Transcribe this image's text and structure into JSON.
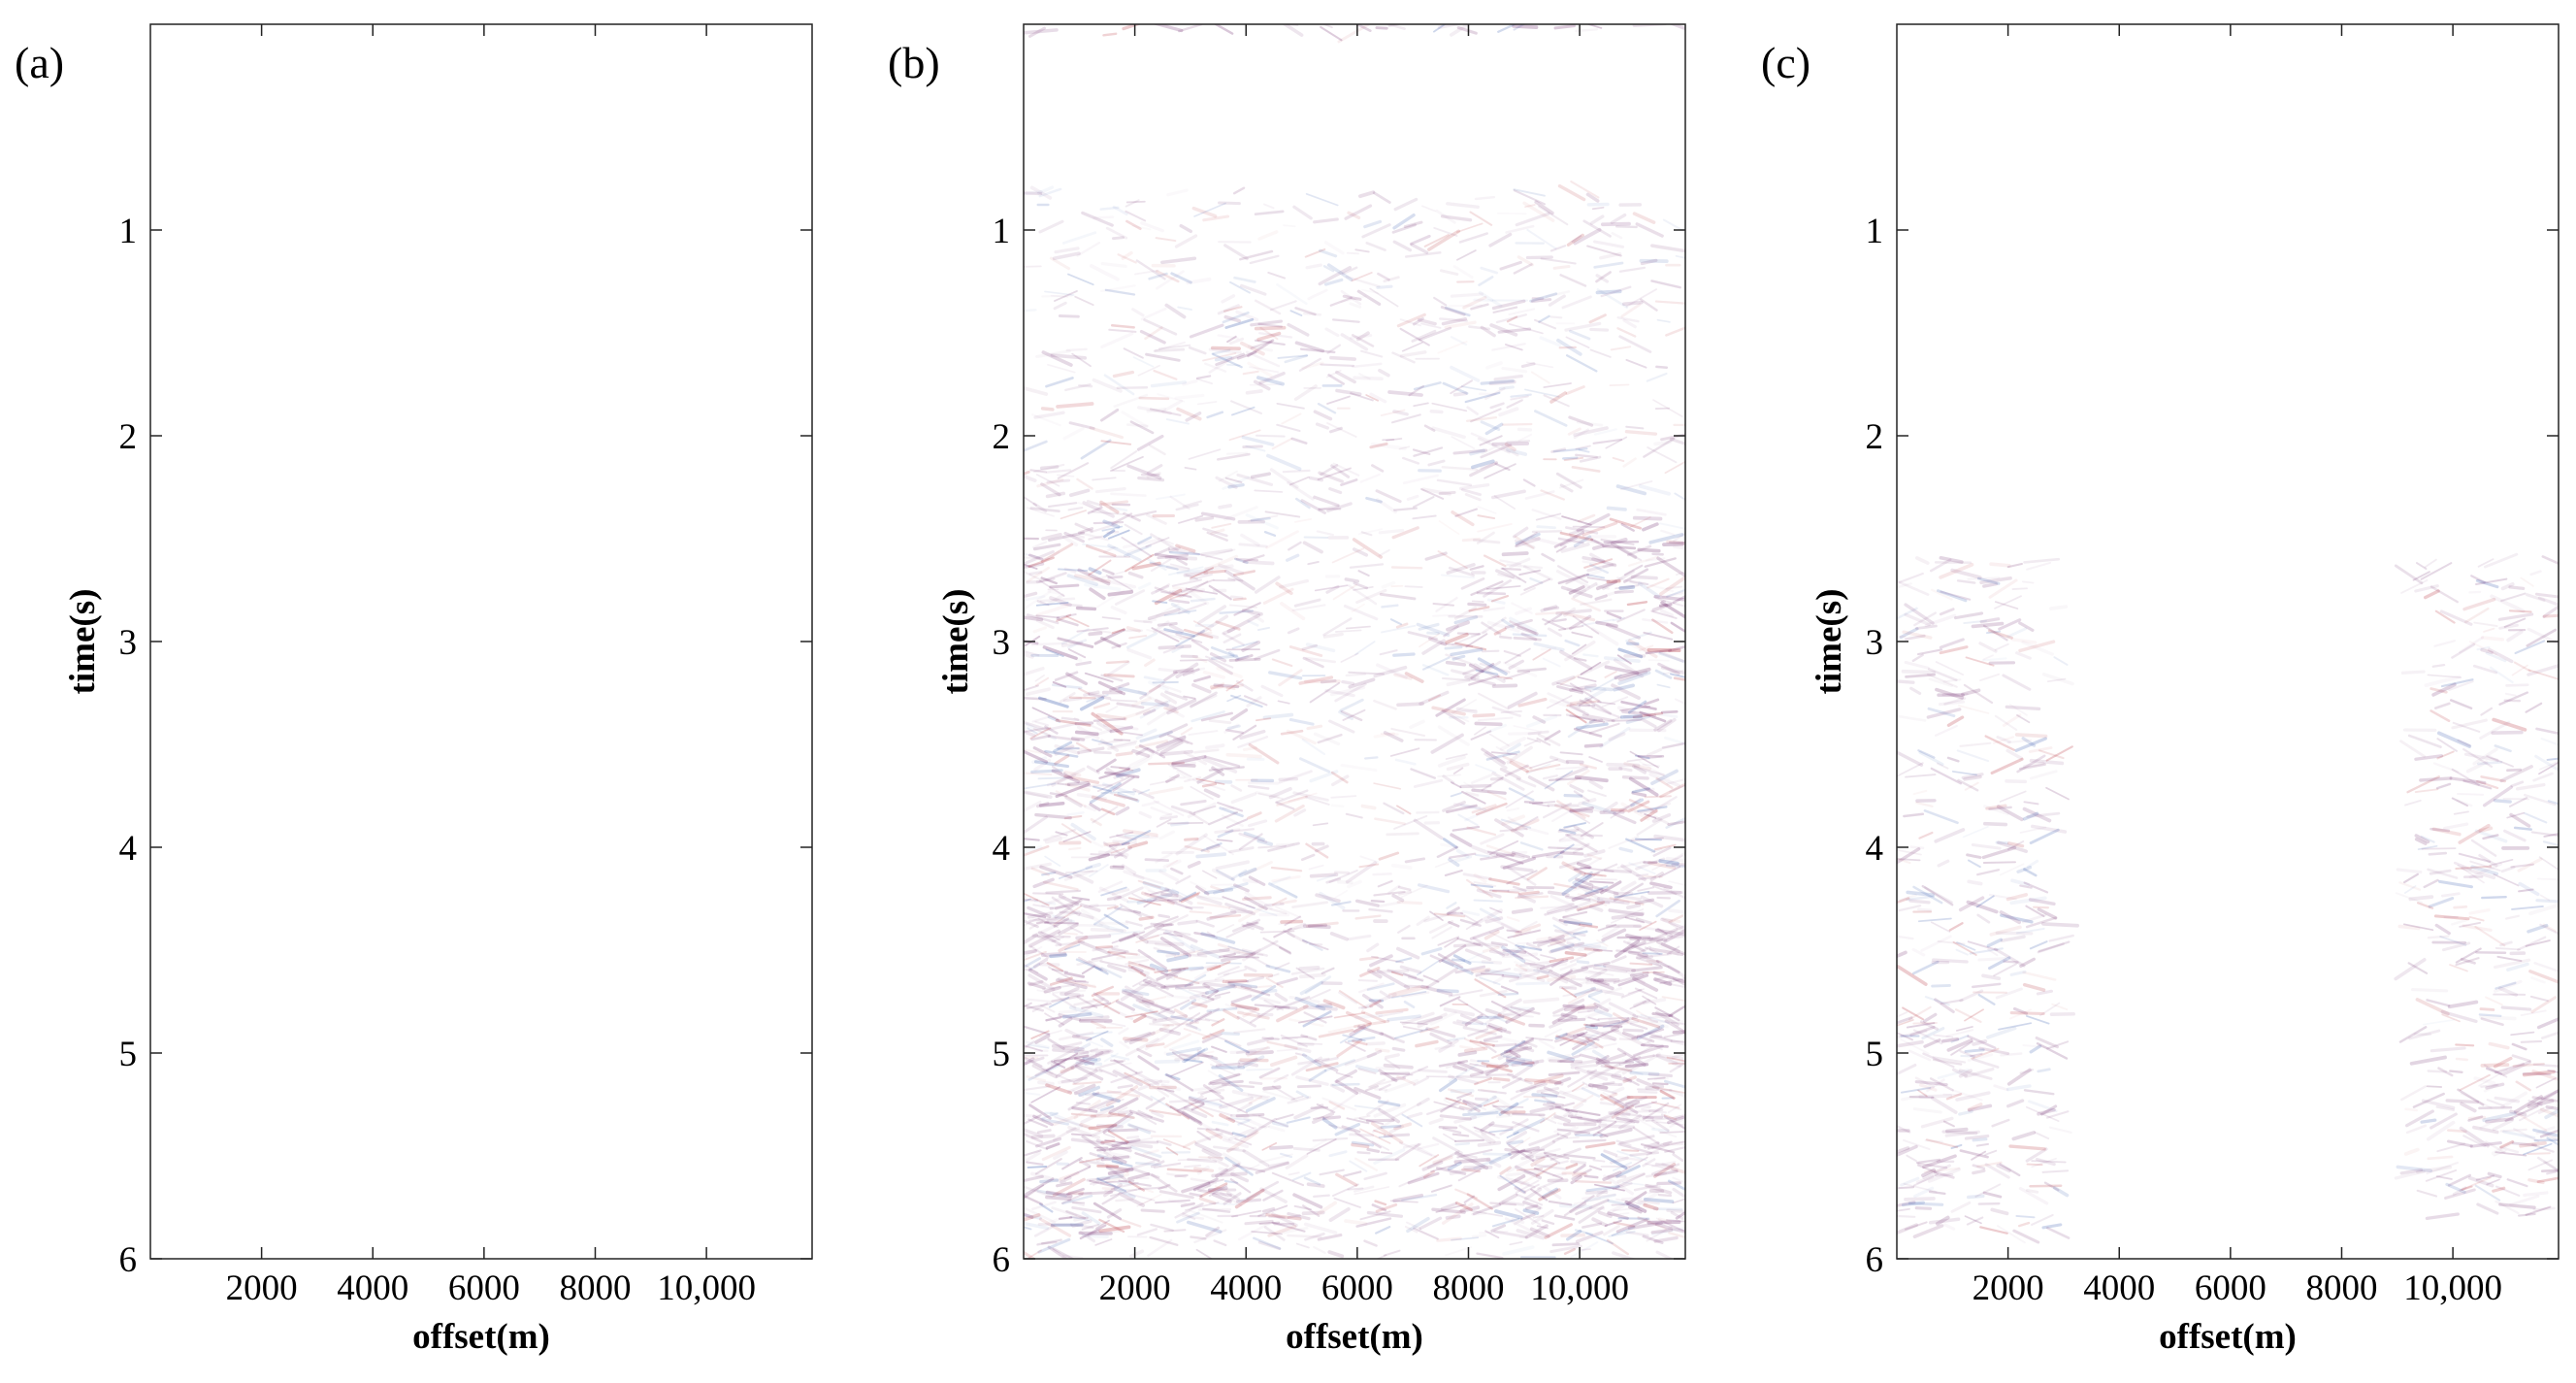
{
  "chart_data": [
    {
      "panel_label": "(a)",
      "type": "heatmap",
      "xlabel": "offset(m)",
      "ylabel": "time(s)",
      "xlim": [
        0,
        11900
      ],
      "ylim": [
        0,
        6
      ],
      "y_reversed": true,
      "xticks": [
        2000,
        4000,
        6000,
        8000,
        10000
      ],
      "xtick_labels": [
        "2000",
        "4000",
        "6000",
        "8000",
        "10,000"
      ],
      "yticks": [
        1,
        2,
        3,
        4,
        5,
        6
      ],
      "ytick_labels": [
        "1",
        "2",
        "3",
        "4",
        "5",
        "6"
      ],
      "colors": {
        "negative": "#2a4fa8",
        "positive": "#b0202a",
        "dominant": "#7a3a78"
      },
      "energy_zones": []
    },
    {
      "panel_label": "(b)",
      "type": "heatmap",
      "xlabel": "offset(m)",
      "ylabel": "time(s)",
      "xlim": [
        0,
        11900
      ],
      "ylim": [
        0,
        6
      ],
      "y_reversed": true,
      "xticks": [
        2000,
        4000,
        6000,
        8000,
        10000
      ],
      "xtick_labels": [
        "2000",
        "4000",
        "6000",
        "8000",
        "10,000"
      ],
      "yticks": [
        1,
        2,
        3,
        4,
        5,
        6
      ],
      "ytick_labels": [
        "1",
        "2",
        "3",
        "4",
        "5",
        "6"
      ],
      "colors": {
        "negative": "#2a4fa8",
        "positive": "#b0202a",
        "dominant": "#7a3a78"
      },
      "energy_zones": [
        {
          "x_range": [
            0,
            11900
          ],
          "t_range": [
            0.8,
            6.0
          ],
          "intensity": 0.18
        },
        {
          "x_range": [
            0,
            1800
          ],
          "t_range": [
            2.3,
            5.9
          ],
          "intensity": 0.55
        },
        {
          "x_range": [
            9800,
            11900
          ],
          "t_range": [
            2.4,
            5.9
          ],
          "intensity": 0.55
        },
        {
          "x_range": [
            1500,
            4200
          ],
          "t_range": [
            2.5,
            5.8
          ],
          "intensity": 0.35
        },
        {
          "x_range": [
            7600,
            10200
          ],
          "t_range": [
            2.5,
            5.8
          ],
          "intensity": 0.35
        },
        {
          "x_range": [
            3600,
            4400
          ],
          "t_range": [
            1.4,
            1.7
          ],
          "intensity": 0.4
        },
        {
          "x_range": [
            8200,
            9100
          ],
          "t_range": [
            1.7,
            2.2
          ],
          "intensity": 0.3
        },
        {
          "x_range": [
            0,
            11900
          ],
          "t_range": [
            4.2,
            5.9
          ],
          "intensity": 0.3
        },
        {
          "x_range": [
            0,
            11900
          ],
          "t_range": [
            0.0,
            0.05
          ],
          "intensity": 0.5
        }
      ]
    },
    {
      "panel_label": "(c)",
      "type": "heatmap",
      "xlabel": "offset(m)",
      "ylabel": "time(s)",
      "xlim": [
        0,
        11900
      ],
      "ylim": [
        0,
        6
      ],
      "y_reversed": true,
      "xticks": [
        2000,
        4000,
        6000,
        8000,
        10000
      ],
      "xtick_labels": [
        "2000",
        "4000",
        "6000",
        "8000",
        "10,000"
      ],
      "yticks": [
        1,
        2,
        3,
        4,
        5,
        6
      ],
      "ytick_labels": [
        "1",
        "2",
        "3",
        "4",
        "5",
        "6"
      ],
      "colors": {
        "negative": "#2a4fa8",
        "positive": "#b0202a",
        "dominant": "#7a3a78"
      },
      "energy_zones": [
        {
          "x_range": [
            0,
            3000
          ],
          "t_range": [
            2.6,
            5.9
          ],
          "intensity": 0.3
        },
        {
          "x_range": [
            9200,
            11900
          ],
          "t_range": [
            2.6,
            5.8
          ],
          "intensity": 0.3
        },
        {
          "x_range": [
            0,
            1500
          ],
          "t_range": [
            4.8,
            5.8
          ],
          "intensity": 0.35
        },
        {
          "x_range": [
            9800,
            11900
          ],
          "t_range": [
            5.0,
            5.8
          ],
          "intensity": 0.35
        }
      ]
    }
  ]
}
